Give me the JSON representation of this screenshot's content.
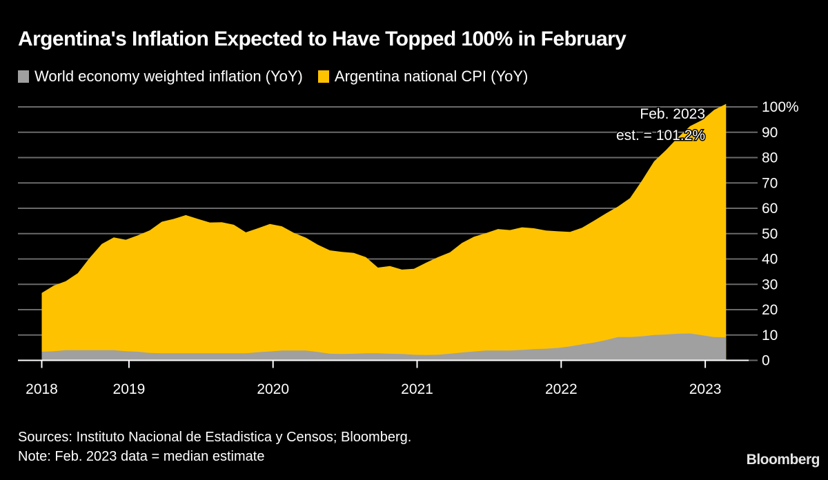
{
  "chart_data": {
    "type": "area",
    "title": "Argentina's Inflation Expected to Have Topped 100% in February",
    "xlabel": "",
    "ylabel": "",
    "ylim": [
      0,
      100
    ],
    "y_ticks": [
      0,
      10,
      20,
      30,
      40,
      50,
      60,
      70,
      80,
      90,
      100
    ],
    "y_tick_labels": [
      "0",
      "10",
      "20",
      "30",
      "40",
      "50",
      "60",
      "70",
      "80",
      "90",
      "100%"
    ],
    "x_tick_labels": [
      "2018",
      "2019",
      "2020",
      "2021",
      "2022",
      "2023"
    ],
    "x_start": "2018-05",
    "x_end": "2023-02",
    "grid": true,
    "legend_position": "top-left",
    "x": [
      "2018-05",
      "2018-06",
      "2018-07",
      "2018-08",
      "2018-09",
      "2018-10",
      "2018-11",
      "2018-12",
      "2019-01",
      "2019-02",
      "2019-03",
      "2019-04",
      "2019-05",
      "2019-06",
      "2019-07",
      "2019-08",
      "2019-09",
      "2019-10",
      "2019-11",
      "2019-12",
      "2020-01",
      "2020-02",
      "2020-03",
      "2020-04",
      "2020-05",
      "2020-06",
      "2020-07",
      "2020-08",
      "2020-09",
      "2020-10",
      "2020-11",
      "2020-12",
      "2021-01",
      "2021-02",
      "2021-03",
      "2021-04",
      "2021-05",
      "2021-06",
      "2021-07",
      "2021-08",
      "2021-09",
      "2021-10",
      "2021-11",
      "2021-12",
      "2022-01",
      "2022-02",
      "2022-03",
      "2022-04",
      "2022-05",
      "2022-06",
      "2022-07",
      "2022-08",
      "2022-09",
      "2022-10",
      "2022-11",
      "2022-12",
      "2023-01",
      "2023-02"
    ],
    "series": [
      {
        "name": "Argentina national CPI (YoY)",
        "color": "#FFC200",
        "values": [
          26.6,
          29.5,
          31.2,
          34.4,
          40.5,
          45.9,
          48.5,
          47.6,
          49.3,
          51.3,
          54.7,
          55.8,
          57.3,
          55.8,
          54.4,
          54.5,
          53.5,
          50.5,
          52.1,
          53.8,
          52.9,
          50.3,
          48.4,
          45.6,
          43.4,
          42.8,
          42.4,
          40.7,
          36.6,
          37.2,
          35.8,
          36.1,
          38.5,
          40.7,
          42.6,
          46.3,
          48.8,
          50.2,
          51.8,
          51.4,
          52.5,
          52.1,
          51.2,
          50.9,
          50.7,
          52.3,
          55.1,
          58.0,
          60.7,
          64.0,
          71.0,
          78.5,
          83.0,
          88.0,
          92.4,
          94.8,
          98.8,
          101.2
        ]
      },
      {
        "name": "World economy weighted inflation (YoY)",
        "color": "#A0A0A0",
        "values": [
          3.4,
          3.6,
          4.0,
          4.0,
          4.0,
          4.0,
          4.0,
          3.6,
          3.4,
          2.9,
          2.8,
          2.8,
          2.8,
          2.8,
          2.8,
          2.8,
          2.8,
          2.8,
          3.2,
          3.5,
          3.9,
          3.9,
          3.9,
          3.3,
          2.6,
          2.5,
          2.6,
          2.8,
          2.8,
          2.6,
          2.5,
          2.2,
          2.1,
          2.2,
          2.6,
          3.1,
          3.5,
          3.9,
          3.9,
          3.9,
          4.1,
          4.4,
          4.6,
          4.9,
          5.5,
          6.3,
          7.0,
          8.0,
          9.2,
          9.2,
          9.5,
          10.0,
          10.2,
          10.5,
          10.6,
          9.9,
          9.2,
          9.1
        ]
      }
    ],
    "annotations": [
      {
        "text_line1": "Feb. 2023",
        "text_line2": "est. = 101.2%",
        "x": "2023-02",
        "y": 101.2
      }
    ]
  },
  "legend": {
    "items": [
      {
        "label": "World economy weighted inflation (YoY)",
        "color": "#A0A0A0"
      },
      {
        "label": "Argentina national CPI (YoY)",
        "color": "#FFC200"
      }
    ]
  },
  "footer": {
    "sources": "Sources: Instituto Nacional de Estadistica y Censos; Bloomberg.",
    "note": "Note: Feb. 2023 data = median estimate"
  },
  "brand": {
    "logo_text": "Bloomberg"
  },
  "colors": {
    "background": "#000000",
    "gridline": "#6b6b6b",
    "axis": "#ffffff",
    "text": "#ffffff"
  }
}
